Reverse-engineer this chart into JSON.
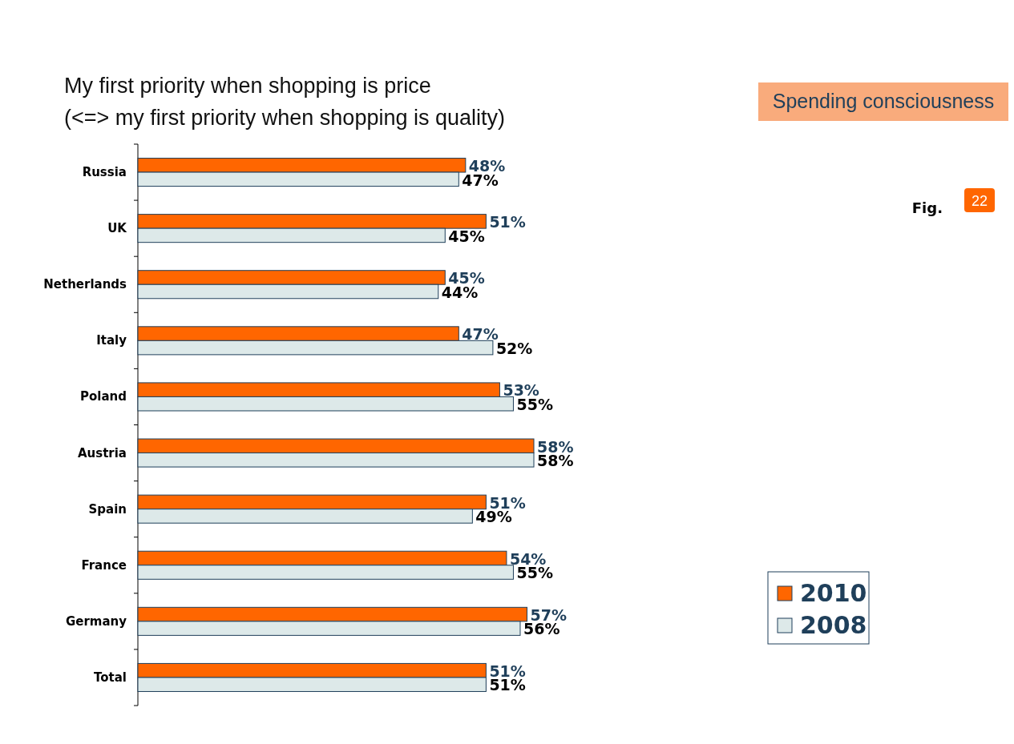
{
  "chart_data": {
    "type": "bar",
    "orientation": "horizontal",
    "title": "My first priority when shopping is price\n(<=>  my first priority when shopping is quality)",
    "categories": [
      "Russia",
      "UK",
      "Netherlands",
      "Italy",
      "Poland",
      "Austria",
      "Spain",
      "France",
      "Germany",
      "Total"
    ],
    "series": [
      {
        "name": "2010",
        "color": "#ff6600",
        "values": [
          48,
          51,
          45,
          47,
          53,
          58,
          51,
          54,
          57,
          51
        ],
        "value_labels": [
          "48%",
          "51%",
          "45%",
          "47%",
          "53%",
          "58%",
          "51%",
          "54%",
          "57%",
          "51%"
        ]
      },
      {
        "name": "2008",
        "color": "#dde9e9",
        "values": [
          47,
          45,
          44,
          52,
          55,
          58,
          49,
          55,
          56,
          51
        ],
        "value_labels": [
          "47%",
          "45%",
          "44%",
          "52%",
          "55%",
          "58%",
          "49%",
          "55%",
          "56%",
          "51%"
        ]
      }
    ],
    "legend": "bottom right",
    "annotations": [
      "Spending consciousness",
      "Fig.",
      "22"
    ]
  }
}
